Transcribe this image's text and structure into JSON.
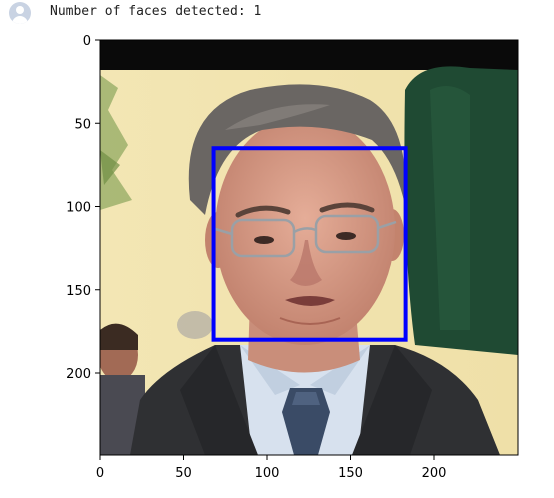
{
  "output": {
    "avatar_icon": "user-avatar-icon",
    "text": "Number of faces detected: 1"
  },
  "chart_data": {
    "type": "image",
    "title": "",
    "xlabel": "",
    "ylabel": "",
    "xlim": [
      0,
      250
    ],
    "ylim": [
      250,
      0
    ],
    "x_ticks": [
      0,
      50,
      100,
      150,
      200
    ],
    "y_ticks": [
      0,
      50,
      100,
      150,
      200
    ],
    "x_tick_labels": [
      "0",
      "50",
      "100",
      "150",
      "200"
    ],
    "y_tick_labels": [
      "0",
      "50",
      "100",
      "150",
      "200"
    ],
    "detection_box": {
      "x0": 68,
      "y0": 65,
      "x1": 183,
      "y1": 180,
      "color": "#0000ff"
    },
    "faces_detected": 1
  }
}
